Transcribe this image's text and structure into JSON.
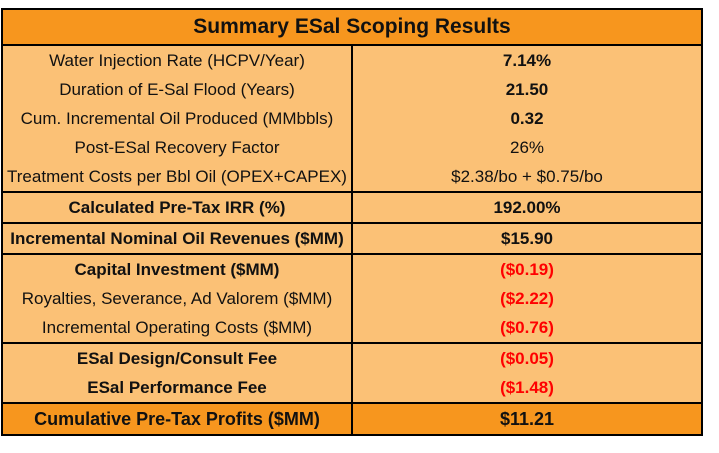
{
  "title": "Summary ESal Scoping Results",
  "rows": [
    {
      "label": "Water Injection Rate (HCPV/Year)",
      "value": "7.14%"
    },
    {
      "label": "Duration of E-Sal Flood (Years)",
      "value": "21.50"
    },
    {
      "label": "Cum. Incremental Oil Produced (MMbbls)",
      "value": "0.32"
    },
    {
      "label": "Post-ESal Recovery Factor",
      "value": "26%"
    },
    {
      "label": "Treatment Costs per Bbl Oil (OPEX+CAPEX)",
      "value": "$2.38/bo + $0.75/bo"
    },
    {
      "label": "Calculated Pre-Tax IRR (%)",
      "value": "192.00%"
    },
    {
      "label": "Incremental Nominal Oil Revenues ($MM)",
      "value": "$15.90"
    },
    {
      "label": "Capital Investment ($MM)",
      "value": "($0.19)"
    },
    {
      "label": "Royalties, Severance, Ad Valorem ($MM)",
      "value": "($2.22)"
    },
    {
      "label": "Incremental Operating Costs ($MM)",
      "value": "($0.76)"
    },
    {
      "label": "ESal Design/Consult Fee",
      "value": "($0.05)"
    },
    {
      "label": "ESal Performance Fee",
      "value": "($1.48)"
    },
    {
      "label": "Cumulative Pre-Tax Profits ($MM)",
      "value": "$11.21"
    }
  ],
  "colors": {
    "header_fill": "#f7961e",
    "body_fill": "#fbc176",
    "negative_text": "#ff0000",
    "border": "#000000"
  }
}
